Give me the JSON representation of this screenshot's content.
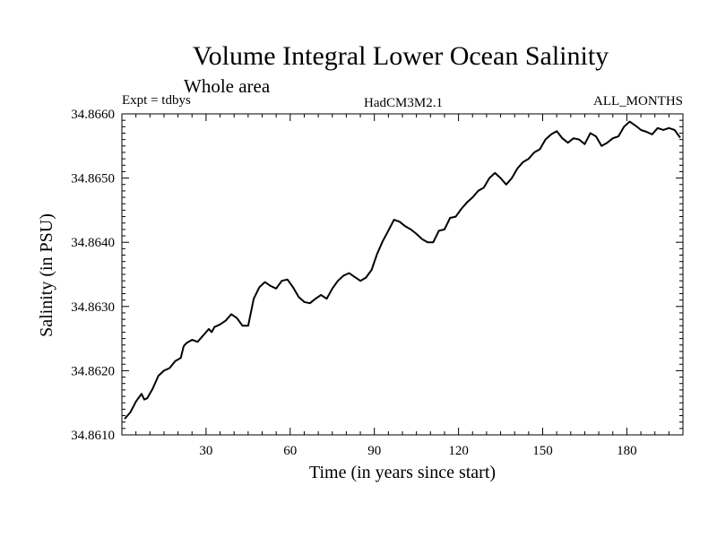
{
  "chart_data": {
    "type": "line",
    "title": "Volume Integral Lower Ocean Salinity",
    "subtitle": "Whole area",
    "header_left": "Expt = tdbys",
    "header_center": "HadCM3M2.1",
    "header_right": "ALL_MONTHS",
    "xlabel": "Time (in years since start)",
    "ylabel": "Salinity (in PSU)",
    "xlim": [
      0,
      200
    ],
    "ylim": [
      34.861,
      34.866
    ],
    "x_ticks": [
      30,
      60,
      90,
      120,
      150,
      180
    ],
    "x_tick_labels": [
      "30",
      "60",
      "90",
      "120",
      "150",
      "180"
    ],
    "y_ticks": [
      34.861,
      34.862,
      34.863,
      34.864,
      34.865,
      34.866
    ],
    "y_tick_labels": [
      "34.8610",
      "34.8620",
      "34.8630",
      "34.8640",
      "34.8650",
      "34.8660"
    ],
    "grid": false,
    "series": [
      {
        "color": "#000000",
        "x": [
          1,
          3,
          5,
          7,
          8,
          9,
          11,
          13,
          15,
          17,
          19,
          21,
          22,
          23,
          25,
          27,
          29,
          31,
          32,
          33,
          35,
          37,
          39,
          41,
          43,
          45,
          47,
          49,
          51,
          53,
          55,
          57,
          59,
          61,
          63,
          65,
          67,
          69,
          71,
          73,
          75,
          77,
          79,
          81,
          83,
          85,
          87,
          89,
          91,
          93,
          95,
          97,
          99,
          101,
          103,
          105,
          107,
          109,
          111,
          113,
          115,
          117,
          119,
          121,
          123,
          125,
          127,
          129,
          131,
          133,
          135,
          137,
          139,
          141,
          143,
          145,
          147,
          149,
          151,
          153,
          155,
          157,
          159,
          161,
          163,
          165,
          167,
          169,
          171,
          173,
          175,
          177,
          179,
          181,
          183,
          185,
          187,
          189,
          191,
          193,
          195,
          197,
          199
        ],
        "y": [
          34.86125,
          34.86135,
          34.86152,
          34.86164,
          34.86155,
          34.86157,
          34.86172,
          34.86192,
          34.862,
          34.86204,
          34.86215,
          34.8622,
          34.86238,
          34.86243,
          34.86248,
          34.86245,
          34.86255,
          34.86265,
          34.8626,
          34.86268,
          34.86272,
          34.86278,
          34.86288,
          34.86282,
          34.8627,
          34.8627,
          34.86312,
          34.8633,
          34.86338,
          34.86332,
          34.86328,
          34.8634,
          34.86342,
          34.8633,
          34.86315,
          34.86307,
          34.86305,
          34.86312,
          34.86318,
          34.86312,
          34.86328,
          34.8634,
          34.86348,
          34.86352,
          34.86346,
          34.8634,
          34.86345,
          34.86357,
          34.86382,
          34.86402,
          34.86418,
          34.86435,
          34.86432,
          34.86425,
          34.8642,
          34.86413,
          34.86405,
          34.864,
          34.864,
          34.86418,
          34.8642,
          34.86438,
          34.8644,
          34.86452,
          34.86462,
          34.8647,
          34.8648,
          34.86485,
          34.865,
          34.86508,
          34.865,
          34.8649,
          34.865,
          34.86515,
          34.86525,
          34.8653,
          34.8654,
          34.86545,
          34.8656,
          34.86568,
          34.86573,
          34.86562,
          34.86555,
          34.86562,
          34.8656,
          34.86553,
          34.8657,
          34.86565,
          34.8655,
          34.86555,
          34.86562,
          34.86565,
          34.8658,
          34.86588,
          34.86582,
          34.86575,
          34.86572,
          34.86568,
          34.86578,
          34.86575,
          34.86578,
          34.86575,
          34.86563
        ]
      }
    ]
  }
}
